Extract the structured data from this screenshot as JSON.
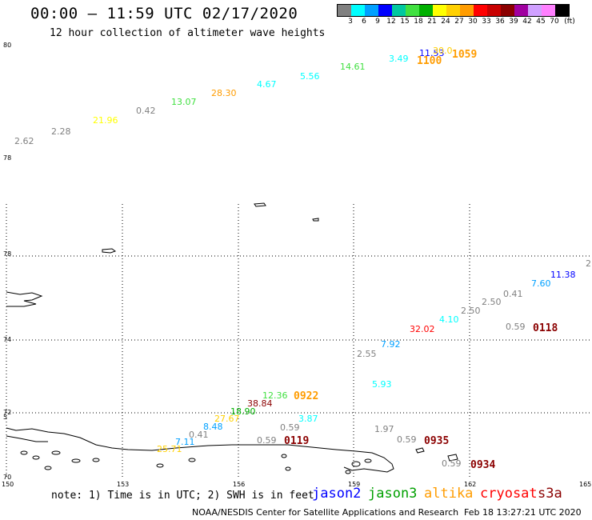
{
  "header": {
    "title": "00:00 – 11:59 UTC 02/17/2020",
    "subtitle": "12 hour collection of altimeter wave heights"
  },
  "legend": {
    "unit": "(ft)",
    "colors": [
      "#808080",
      "#00ffff",
      "#00a0ff",
      "#0000ff",
      "#00c8a0",
      "#40e040",
      "#00b000",
      "#ffff00",
      "#ffd000",
      "#ff9c00",
      "#ff0000",
      "#c80000",
      "#8b0000",
      "#a000a0",
      "#d0a0ff",
      "#ff80ff",
      "#000000"
    ],
    "values": [
      "3",
      "6",
      "9",
      "12",
      "15",
      "18",
      "21",
      "24",
      "27",
      "30",
      "33",
      "36",
      "39",
      "42",
      "45",
      "70"
    ]
  },
  "axes": {
    "x_ticks": [
      "150",
      "153",
      "156",
      "159",
      "162",
      "165"
    ],
    "y_ticks_left": [
      "80",
      "78",
      "76",
      "74",
      "72",
      "70"
    ],
    "y_partial": "5"
  },
  "swh_labels": [
    {
      "text": "2.62",
      "color": "#808080"
    },
    {
      "text": "2.28",
      "color": "#808080"
    },
    {
      "text": "21.96",
      "color": "#ffff00"
    },
    {
      "text": "0.42",
      "color": "#808080"
    },
    {
      "text": "13.07",
      "color": "#40e040"
    },
    {
      "text": "28.30",
      "color": "#ff9c00"
    },
    {
      "text": "4.67",
      "color": "#00ffff"
    },
    {
      "text": "5.56",
      "color": "#00ffff"
    },
    {
      "text": "14.61",
      "color": "#40e040"
    },
    {
      "text": "3.49",
      "color": "#00ffff"
    },
    {
      "text": "11.53",
      "color": "#0000ff"
    },
    {
      "text": "30.0",
      "color": "#ffd000"
    },
    {
      "text": "11.38",
      "color": "#0000ff"
    },
    {
      "text": "7.60",
      "color": "#00a0ff"
    },
    {
      "text": "0.41",
      "color": "#808080"
    },
    {
      "text": "2.50",
      "color": "#808080"
    },
    {
      "text": "2.50",
      "color": "#808080"
    },
    {
      "text": "4.10",
      "color": "#00ffff"
    },
    {
      "text": "32.02",
      "color": "#ff0000"
    },
    {
      "text": "0.59",
      "color": "#808080"
    },
    {
      "text": "7.92",
      "color": "#00a0ff"
    },
    {
      "text": "2.55",
      "color": "#808080"
    },
    {
      "text": "5.93",
      "color": "#00ffff"
    },
    {
      "text": "12.36",
      "color": "#40e040"
    },
    {
      "text": "38.84",
      "color": "#8b0000"
    },
    {
      "text": "18.90",
      "color": "#00b000"
    },
    {
      "text": "27.67",
      "color": "#ffd000"
    },
    {
      "text": "3.87",
      "color": "#00ffff"
    },
    {
      "text": "8.48",
      "color": "#00a0ff"
    },
    {
      "text": "0.41",
      "color": "#808080"
    },
    {
      "text": "0.59",
      "color": "#808080"
    },
    {
      "text": "1.97",
      "color": "#808080"
    },
    {
      "text": "7.11",
      "color": "#00a0ff"
    },
    {
      "text": "25.71",
      "color": "#ffd000"
    },
    {
      "text": "0.59",
      "color": "#808080"
    },
    {
      "text": "0.59",
      "color": "#808080"
    },
    {
      "text": "0.59",
      "color": "#808080"
    },
    {
      "text": "2.",
      "color": "#808080"
    }
  ],
  "time_labels": [
    {
      "text": "1100",
      "color": "#ff9c00"
    },
    {
      "text": "1059",
      "color": "#ff9c00"
    },
    {
      "text": "0118",
      "color": "#8b0000"
    },
    {
      "text": "0922",
      "color": "#ff9c00"
    },
    {
      "text": "0119",
      "color": "#8b0000"
    },
    {
      "text": "0935",
      "color": "#8b0000"
    },
    {
      "text": "0934",
      "color": "#8b0000"
    }
  ],
  "footer": {
    "note": "note: 1) Time is in UTC; 2) SWH is in feet",
    "satellites": [
      {
        "name": "jason2",
        "color": "#0000ff"
      },
      {
        "name": "jason3",
        "color": "#00a000"
      },
      {
        "name": "altika",
        "color": "#ff9c00"
      },
      {
        "name": "cryosat",
        "color": "#ff0000"
      },
      {
        "name": "s3a",
        "color": "#8b0000"
      }
    ],
    "credit": "NOAA/NESDIS Center for Satellite Applications and Research",
    "timestamp": "Feb 18 13:27:21 UTC 2020"
  }
}
